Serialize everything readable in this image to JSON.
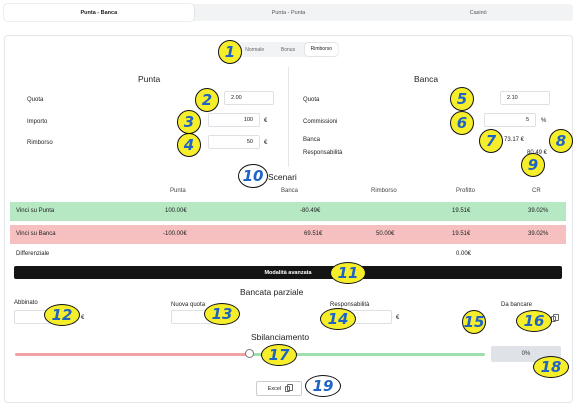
{
  "tabs": [
    "Punta - Banca",
    "Punta - Punta",
    "Casinò"
  ],
  "mode": {
    "items": [
      "Normale",
      "Bonus",
      "Rimborso"
    ]
  },
  "punta": {
    "title": "Punta",
    "quota_label": "Quota",
    "quota_value": "2.00",
    "importo_label": "Importo",
    "importo_value": "100",
    "importo_unit": "€",
    "rimborso_label": "Rimborso",
    "rimborso_value": "50",
    "rimborso_unit": "€"
  },
  "banca": {
    "title": "Banca",
    "quota_label": "Quota",
    "quota_value": "2.10",
    "commissioni_label": "Commissioni",
    "commissioni_value": "5",
    "commissioni_unit": "%",
    "banca_label": "Banca",
    "banca_value": "73.17 €",
    "responsabilita_label": "Responsabilità",
    "responsabilita_value": "80.49 €"
  },
  "scenari": {
    "title": "Scenari",
    "headers": [
      "Punta",
      "Banca",
      "Rimborso",
      "Profitto",
      "CR"
    ],
    "rows": [
      {
        "label": "Vinci su Punta",
        "punta": "100.00€",
        "banca": "-80.49€",
        "rimborso": "",
        "profitto": "19.51€",
        "cr": "39.02%"
      },
      {
        "label": "Vinci su Banca",
        "punta": "-100.00€",
        "banca": "69.51€",
        "rimborso": "50.00€",
        "profitto": "19.51€",
        "cr": "39.02%"
      }
    ],
    "differenziale_label": "Differenziale",
    "differenziale_value": "0.00€"
  },
  "advanced_button": "Modalità avanzata",
  "parziale": {
    "title": "Bancata parziale",
    "abbinato_label": "Abbinato",
    "abbinato_unit": "€",
    "nuova_quota_label": "Nuova quota",
    "responsabilita_label": "Responsabilità",
    "responsabilita_value": "0",
    "responsabilita_unit": "€",
    "da_bancare_label": "Da bancare"
  },
  "sbilanciamento": {
    "title": "Sbilanciamento",
    "value": "0%",
    "slider_fraction": 0.5
  },
  "excel_button": "Excel",
  "badges": [
    "1",
    "2",
    "3",
    "4",
    "5",
    "6",
    "7",
    "8",
    "9",
    "10",
    "11",
    "12",
    "13",
    "14",
    "15",
    "16",
    "17",
    "18",
    "19"
  ],
  "colors": {
    "green_row": "#b5e8c3",
    "red_row": "#f6c0c0",
    "badge_fill": "#f6ee2a",
    "badge_text": "#1f63c4"
  }
}
